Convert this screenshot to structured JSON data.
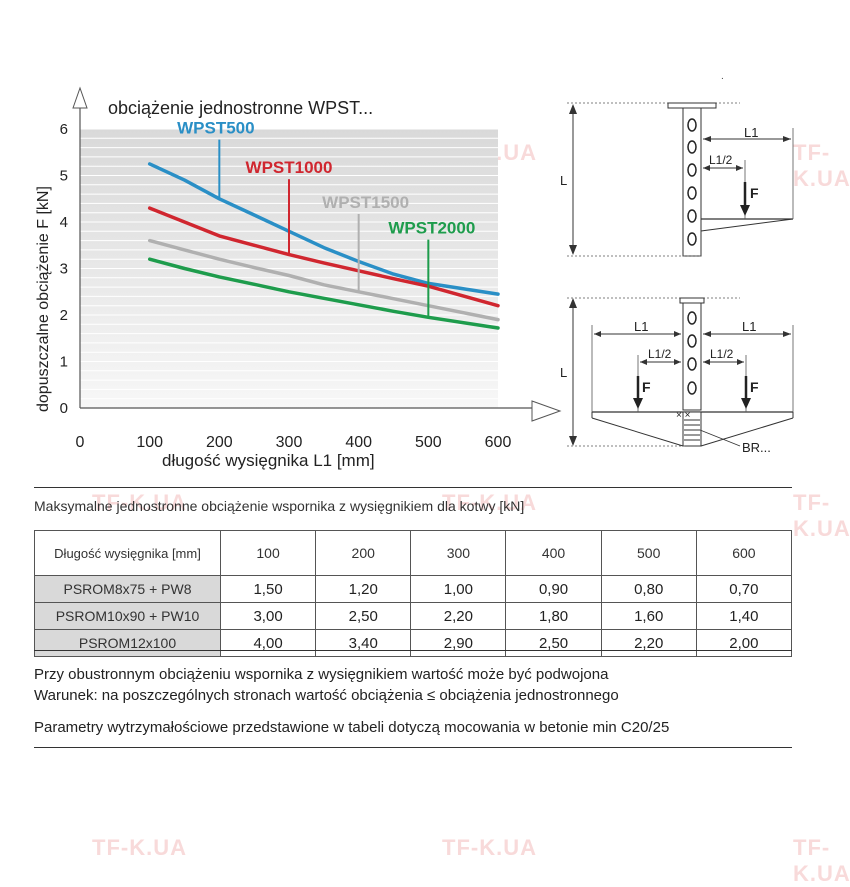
{
  "watermark": "TF-K.UA",
  "chart_data": {
    "type": "line",
    "title": "obciążenie jednostronne WPST...",
    "xlabel": "długość wysięgnika L1 [mm]",
    "ylabel": "dopuszczalne obciążenie F [kN]",
    "xlim": [
      0,
      600
    ],
    "ylim": [
      0,
      6
    ],
    "x_ticks": [
      0,
      100,
      200,
      300,
      400,
      500,
      600
    ],
    "y_ticks": [
      0,
      1,
      2,
      3,
      4,
      5,
      6
    ],
    "grid": true,
    "series": [
      {
        "name": "WPST500",
        "color": "#2a8fc6",
        "label_at": [
          195,
          5.9
        ],
        "pointer_x": 200,
        "x": [
          100,
          150,
          200,
          250,
          300,
          350,
          400,
          450,
          500,
          600
        ],
        "y": [
          5.25,
          4.9,
          4.5,
          4.15,
          3.8,
          3.45,
          3.15,
          2.88,
          2.68,
          2.45
        ]
      },
      {
        "name": "WPST1000",
        "color": "#d0262f",
        "label_at": [
          300,
          5.05
        ],
        "pointer_x": 300,
        "x": [
          100,
          150,
          200,
          250,
          300,
          350,
          400,
          450,
          500,
          600
        ],
        "y": [
          4.3,
          4.0,
          3.7,
          3.5,
          3.3,
          3.12,
          2.95,
          2.78,
          2.62,
          2.2
        ]
      },
      {
        "name": "WPST1500",
        "color": "#b0b0b0",
        "label_at": [
          410,
          4.3
        ],
        "pointer_x": 400,
        "x": [
          100,
          150,
          200,
          250,
          300,
          350,
          400,
          450,
          500,
          600
        ],
        "y": [
          3.6,
          3.4,
          3.2,
          3.02,
          2.85,
          2.65,
          2.5,
          2.35,
          2.2,
          1.9
        ]
      },
      {
        "name": "WPST2000",
        "color": "#1e9c4c",
        "label_at": [
          505,
          3.75
        ],
        "pointer_x": 500,
        "x": [
          100,
          150,
          200,
          250,
          300,
          350,
          400,
          450,
          500,
          600
        ],
        "y": [
          3.2,
          3.0,
          2.82,
          2.66,
          2.5,
          2.36,
          2.22,
          2.08,
          1.95,
          1.72
        ]
      }
    ]
  },
  "diagram": {
    "l1": "L1",
    "l1_half": "L1/2",
    "l": "L",
    "force": "F",
    "br": "BR..."
  },
  "table": {
    "title": "Maksymalne jednostronne obciążenie wspornika z wysięgnikiem dla kotwy [kN]",
    "header_first": "Długość wysięgnika [mm]",
    "columns": [
      "100",
      "200",
      "300",
      "400",
      "500",
      "600"
    ],
    "rows": [
      {
        "product": "PSROM8x75 + PW8",
        "values": [
          "1,50",
          "1,20",
          "1,00",
          "0,90",
          "0,80",
          "0,70"
        ]
      },
      {
        "product": "PSROM10x90 + PW10",
        "values": [
          "3,00",
          "2,50",
          "2,20",
          "1,80",
          "1,60",
          "1,40"
        ]
      },
      {
        "product": "PSROM12x100",
        "values": [
          "4,00",
          "3,40",
          "2,90",
          "2,50",
          "2,20",
          "2,00"
        ]
      }
    ]
  },
  "notes": [
    "Przy obustronnym obciążeniu wspornika z wysięgnikiem wartość może być podwojona",
    "Warunek: na poszczególnych stronach wartość obciążenia ≤ obciążenia jednostronnego",
    "Parametry wytrzymałościowe przedstawione w tabeli dotyczą mocowania w betonie min C20/25"
  ]
}
